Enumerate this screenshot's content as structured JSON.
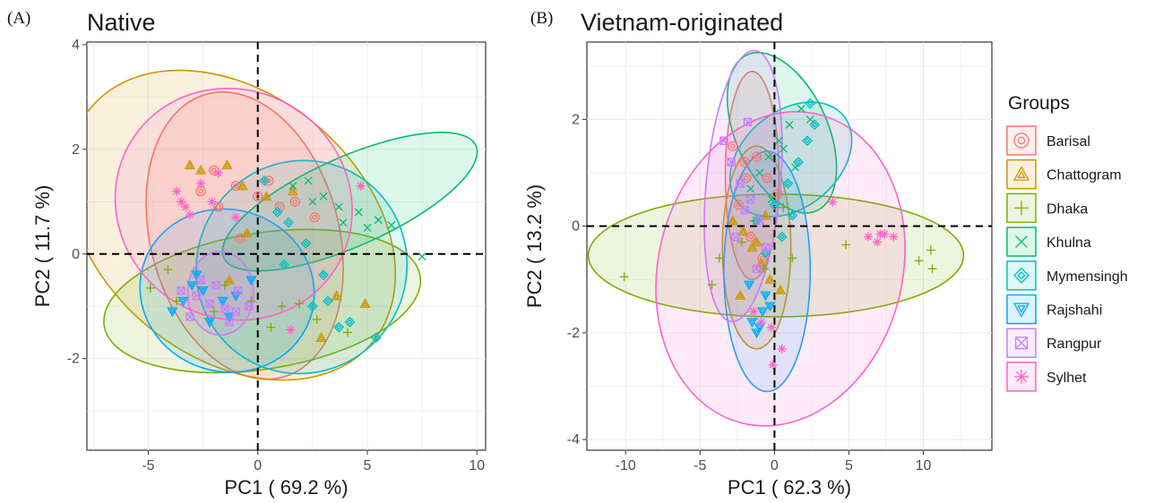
{
  "chart_data": [
    {
      "type": "scatter",
      "panel_label": "(A)",
      "title": "Native",
      "xlabel": "PC1 ( 69.2 %)",
      "ylabel": "PC2 ( 11.7 %)",
      "xlim": [
        -7.8,
        10.4
      ],
      "ylim": [
        -3.75,
        4.05
      ],
      "xticks": [
        -5,
        0,
        5,
        10
      ],
      "yticks": [
        -2,
        0,
        2,
        4
      ],
      "grid": true,
      "reference_lines": {
        "x": 0,
        "y": 0,
        "style": "dashed"
      },
      "ellipses": [
        {
          "group": "Barisal",
          "cx": -0.6,
          "cy": 0.35,
          "rx": 4.3,
          "ry": 2.8,
          "angle": -15
        },
        {
          "group": "Chattogram",
          "cx": -1.2,
          "cy": 0.55,
          "rx": 6.0,
          "ry": 3.5,
          "angle": -50
        },
        {
          "group": "Dhaka",
          "cx": 0.2,
          "cy": -0.9,
          "rx": 7.3,
          "ry": 1.3,
          "angle": -9
        },
        {
          "group": "Khulna",
          "cx": 4.2,
          "cy": 1.0,
          "rx": 6.3,
          "ry": 0.85,
          "angle": -24
        },
        {
          "group": "Mymensingh",
          "cx": 2.0,
          "cy": -0.25,
          "rx": 4.9,
          "ry": 2.0,
          "angle": -59
        },
        {
          "group": "Rajshahi",
          "cx": -1.4,
          "cy": -0.7,
          "rx": 4.0,
          "ry": 1.55,
          "angle": 16
        },
        {
          "group": "Rangpur",
          "cx": -1.7,
          "cy": -0.75,
          "rx": 1.5,
          "ry": 0.8,
          "angle": 0
        },
        {
          "group": "Sylhet",
          "cx": -1.1,
          "cy": 0.95,
          "rx": 5.2,
          "ry": 2.3,
          "angle": -56
        }
      ],
      "points": [
        {
          "group": "Barisal",
          "x": [
            -2.0,
            -1.0,
            0.0,
            1.0,
            1.7,
            -0.8,
            -1.8,
            -2.6,
            2.6,
            0.5
          ],
          "y": [
            1.6,
            1.3,
            1.1,
            0.9,
            1.0,
            0.3,
            0.9,
            1.2,
            0.7,
            1.4
          ]
        },
        {
          "group": "Chattogram",
          "x": [
            -3.1,
            -2.6,
            -1.4,
            -0.7,
            0.4,
            1.6,
            3.6,
            4.9,
            -1.3,
            2.9,
            -0.5
          ],
          "y": [
            1.7,
            1.6,
            1.7,
            1.3,
            1.1,
            1.2,
            -0.8,
            -0.95,
            -0.5,
            -1.6,
            0.4
          ]
        },
        {
          "group": "Dhaka",
          "x": [
            -4.9,
            -4.1,
            -3.7,
            -2.0,
            -0.3,
            1.1,
            2.7,
            4.1,
            1.9,
            -1.5,
            0.6
          ],
          "y": [
            -0.65,
            -0.3,
            -0.9,
            -1.1,
            -0.9,
            -1.0,
            -1.25,
            -1.5,
            -0.95,
            -0.6,
            -1.4
          ]
        },
        {
          "group": "Khulna",
          "x": [
            1.6,
            2.3,
            3.0,
            3.7,
            4.6,
            5.5,
            6.1,
            7.5,
            2.5,
            3.9,
            5.0
          ],
          "y": [
            1.3,
            1.4,
            1.1,
            0.9,
            0.8,
            0.65,
            0.55,
            -0.05,
            1.0,
            0.6,
            0.5
          ]
        },
        {
          "group": "Mymensingh",
          "x": [
            0.3,
            1.4,
            2.2,
            3.2,
            3.7,
            5.4,
            1.2,
            2.5,
            3.0,
            4.2,
            0.9
          ],
          "y": [
            1.4,
            0.6,
            0.2,
            -0.9,
            -1.4,
            -1.6,
            -0.2,
            -1.0,
            -0.4,
            -1.3,
            0.8
          ]
        },
        {
          "group": "Rajshahi",
          "x": [
            -3.9,
            -3.4,
            -2.5,
            -1.6,
            -1.3,
            -0.3,
            -2.8,
            -1.0,
            -2.2,
            -3.0
          ],
          "y": [
            -1.1,
            -0.9,
            -0.7,
            -0.9,
            -1.2,
            -0.5,
            -0.4,
            -0.8,
            -1.3,
            -0.6
          ]
        },
        {
          "group": "Rangpur",
          "x": [
            -3.5,
            -2.8,
            -2.2,
            -1.5,
            -1.0,
            -0.4,
            -2.6,
            -1.9,
            -0.9,
            -3.1,
            -1.3
          ],
          "y": [
            -0.7,
            -0.8,
            -0.95,
            -1.05,
            -1.1,
            -1.0,
            -0.5,
            -0.6,
            -0.7,
            -1.2,
            -1.3
          ]
        },
        {
          "group": "Sylhet",
          "x": [
            -3.7,
            -3.5,
            -3.1,
            -2.6,
            -1.8,
            -1.0,
            4.7,
            1.5,
            -2.1,
            -3.3
          ],
          "y": [
            1.2,
            1.0,
            0.75,
            1.35,
            1.55,
            0.7,
            1.3,
            -1.45,
            1.0,
            0.9
          ]
        }
      ]
    },
    {
      "type": "scatter",
      "panel_label": "(B)",
      "title": "Vietnam-originated",
      "xlabel": "PC1 ( 62.3 %)",
      "ylabel": "PC2 ( 13.2 %)",
      "xlim": [
        -12.6,
        14.6
      ],
      "ylim": [
        -4.2,
        3.45
      ],
      "xticks": [
        -10,
        -5,
        0,
        5,
        10
      ],
      "yticks": [
        -4,
        -2,
        0,
        2
      ],
      "grid": true,
      "reference_lines": {
        "x": 0,
        "y": 0,
        "style": "dashed"
      },
      "ellipses": [
        {
          "group": "Barisal",
          "cx": -1.5,
          "cy": 0.95,
          "rx": 1.8,
          "ry": 1.95,
          "angle": 0
        },
        {
          "group": "Chattogram",
          "cx": -1.2,
          "cy": -0.4,
          "rx": 2.3,
          "ry": 1.9,
          "angle": 0
        },
        {
          "group": "Dhaka",
          "cx": 0.1,
          "cy": -0.55,
          "rx": 12.6,
          "ry": 1.15,
          "angle": 0
        },
        {
          "group": "Khulna",
          "cx": 0.5,
          "cy": 1.75,
          "rx": 3.1,
          "ry": 1.6,
          "angle": -24
        },
        {
          "group": "Mymensingh",
          "cx": 1.1,
          "cy": 1.25,
          "rx": 4.6,
          "ry": 0.9,
          "angle": -40
        },
        {
          "group": "Rajshahi",
          "cx": -0.5,
          "cy": -0.85,
          "rx": 2.9,
          "ry": 2.25,
          "angle": 0
        },
        {
          "group": "Rangpur",
          "cx": -2.1,
          "cy": 0.75,
          "rx": 2.5,
          "ry": 2.55,
          "angle": 5
        },
        {
          "group": "Sylhet",
          "cx": 0.4,
          "cy": -0.8,
          "rx": 8.2,
          "ry": 2.98,
          "angle": 14
        }
      ],
      "points": [
        {
          "group": "Barisal",
          "x": [
            -2.8,
            -2.0,
            -1.2,
            -0.5,
            0.2,
            -1.6,
            -2.4,
            -0.8,
            -1.9
          ],
          "y": [
            1.5,
            1.2,
            1.3,
            0.9,
            0.6,
            -0.2,
            0.4,
            -0.6,
            0.9
          ]
        },
        {
          "group": "Chattogram",
          "x": [
            -2.8,
            -2.1,
            -1.5,
            -0.9,
            -0.3,
            0.4,
            -2.3,
            -1.2,
            -0.6
          ],
          "y": [
            0.1,
            -0.1,
            -0.4,
            -0.7,
            -1.0,
            -1.2,
            -1.3,
            -0.3,
            0.2
          ]
        },
        {
          "group": "Dhaka",
          "x": [
            -10.1,
            -4.2,
            -3.7,
            -2.2,
            -0.7,
            1.2,
            4.8,
            9.7,
            10.5,
            10.6,
            -1.4,
            0.6
          ],
          "y": [
            -0.95,
            -1.1,
            -0.6,
            -0.3,
            -0.8,
            -0.6,
            -0.35,
            -0.65,
            -0.45,
            -0.8,
            0.1,
            0.35
          ]
        },
        {
          "group": "Khulna",
          "x": [
            -1.0,
            -0.4,
            0.3,
            1.0,
            1.8,
            2.4,
            -1.6,
            0.6,
            1.4,
            -0.2
          ],
          "y": [
            1.0,
            1.3,
            1.6,
            1.9,
            2.2,
            2.0,
            0.7,
            1.45,
            1.1,
            0.5
          ]
        },
        {
          "group": "Mymensingh",
          "x": [
            0.0,
            0.9,
            1.6,
            2.2,
            2.7,
            0.5,
            -0.6,
            1.2,
            -1.2,
            2.4
          ],
          "y": [
            0.4,
            0.8,
            1.2,
            1.6,
            1.9,
            -0.2,
            -0.5,
            0.2,
            0.1,
            2.3
          ]
        },
        {
          "group": "Rajshahi",
          "x": [
            -1.5,
            -1.2,
            -0.8,
            -0.6,
            -0.3,
            -1.7,
            -1.0
          ],
          "y": [
            -1.8,
            -2.0,
            -1.6,
            -1.3,
            -1.5,
            -1.1,
            -1.9
          ]
        },
        {
          "group": "Rangpur",
          "x": [
            -3.4,
            -2.9,
            -2.3,
            -1.6,
            -1.0,
            -0.6,
            -2.6,
            -1.8,
            -1.2,
            -2.0
          ],
          "y": [
            1.6,
            1.2,
            0.8,
            0.5,
            0.1,
            -0.4,
            -0.2,
            1.95,
            -0.8,
            0.3
          ]
        },
        {
          "group": "Sylhet",
          "x": [
            6.3,
            6.9,
            7.4,
            8.0,
            7.1,
            3.9,
            -0.1,
            0.5,
            -1.4,
            -0.9,
            -0.2
          ],
          "y": [
            -0.2,
            -0.3,
            -0.15,
            -0.2,
            -0.15,
            0.45,
            -2.6,
            -2.3,
            -1.6,
            -1.8,
            -1.9
          ]
        }
      ]
    }
  ],
  "legend": {
    "title": "Groups",
    "placement": "right",
    "entries": [
      {
        "label": "Barisal",
        "color": "#F8766D",
        "shape": "circle-open"
      },
      {
        "label": "Chattogram",
        "color": "#CD9600",
        "shape": "triangle-open"
      },
      {
        "label": "Dhaka",
        "color": "#7CAE00",
        "shape": "plus"
      },
      {
        "label": "Khulna",
        "color": "#00BE67",
        "shape": "cross"
      },
      {
        "label": "Mymensingh",
        "color": "#00BFC4",
        "shape": "diamond-open"
      },
      {
        "label": "Rajshahi",
        "color": "#00A9FF",
        "shape": "triangle-down-open"
      },
      {
        "label": "Rangpur",
        "color": "#C77CFF",
        "shape": "square-crossed"
      },
      {
        "label": "Sylhet",
        "color": "#FF61CC",
        "shape": "asterisk"
      }
    ]
  }
}
